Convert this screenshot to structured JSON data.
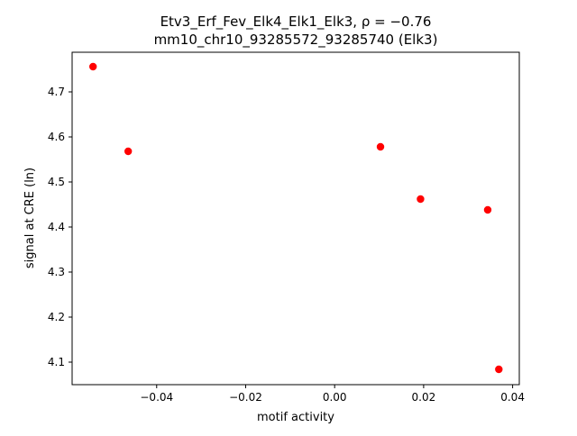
{
  "chart_data": {
    "type": "scatter",
    "title": "Etv3_Erf_Fev_Elk4_Elk1_Elk3, ρ = −0.76",
    "subtitle": "mm10_chr10_93285572_93285740 (Elk3)",
    "xlabel": "motif activity",
    "ylabel": "signal at CRE (ln)",
    "xlim": [
      -0.059,
      0.0415
    ],
    "ylim": [
      4.05,
      4.788
    ],
    "xticks": [
      -0.04,
      -0.02,
      0.0,
      0.02,
      0.04
    ],
    "xtick_labels": [
      "−0.04",
      "−0.02",
      "0.00",
      "0.02",
      "0.04"
    ],
    "yticks": [
      4.1,
      4.2,
      4.3,
      4.4,
      4.5,
      4.6,
      4.7
    ],
    "ytick_labels": [
      "4.1",
      "4.2",
      "4.3",
      "4.4",
      "4.5",
      "4.6",
      "4.7"
    ],
    "grid": false,
    "marker_color": "#ff0000",
    "points": [
      {
        "x": -0.0543,
        "y": 4.756
      },
      {
        "x": -0.0464,
        "y": 4.568
      },
      {
        "x": 0.0103,
        "y": 4.578
      },
      {
        "x": 0.0193,
        "y": 4.462
      },
      {
        "x": 0.0344,
        "y": 4.438
      },
      {
        "x": 0.0369,
        "y": 4.084
      }
    ]
  }
}
